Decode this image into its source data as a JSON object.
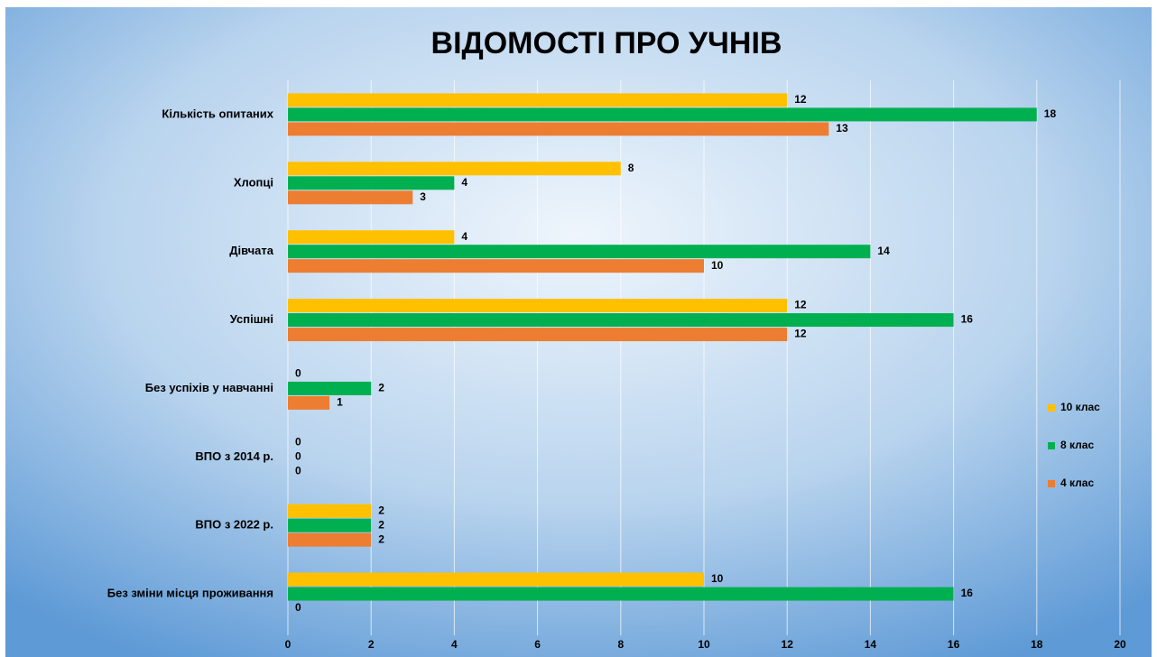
{
  "chart_data": {
    "type": "bar",
    "orientation": "horizontal",
    "title": "ВІДОМОСТІ ПРО УЧНІВ",
    "categories": [
      "Кількість опитаних",
      "Хлопці",
      "Дівчата",
      "Успішні",
      "Без успіхів у навчанні",
      "ВПО з 2014 р.",
      "ВПО з 2022 р.",
      "Без зміни місця проживання"
    ],
    "series": [
      {
        "name": "10 клас",
        "color": "#FFC000",
        "values": [
          12,
          8,
          4,
          12,
          0,
          0,
          2,
          10
        ]
      },
      {
        "name": "8 клас",
        "color": "#00B050",
        "values": [
          18,
          4,
          14,
          16,
          2,
          0,
          2,
          16
        ]
      },
      {
        "name": "4 клас",
        "color": "#ED7D31",
        "values": [
          13,
          3,
          10,
          12,
          1,
          0,
          2,
          0
        ]
      }
    ],
    "xlim": [
      0,
      20
    ],
    "xticks": [
      0,
      2,
      4,
      6,
      8,
      10,
      12,
      14,
      16,
      18,
      20
    ],
    "grid": true,
    "legend": "right"
  }
}
